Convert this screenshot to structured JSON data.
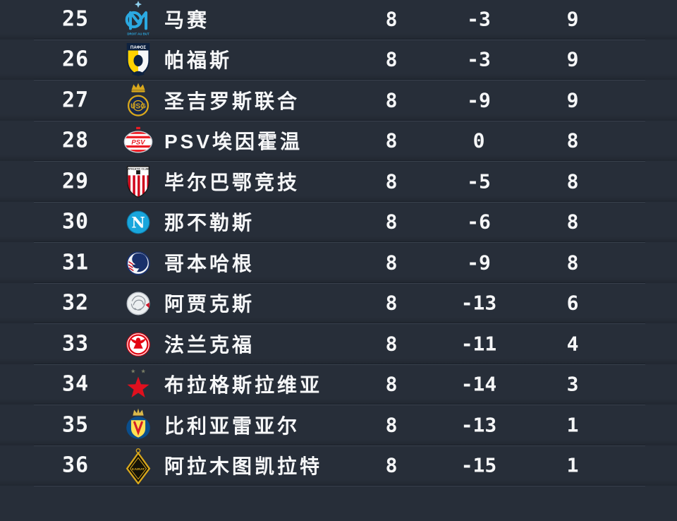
{
  "page": {
    "background_color": "#272e39",
    "text_color": "#f6f7f8",
    "separator_dark": "#1a202a",
    "separator_light": "#39414d"
  },
  "standings_table": {
    "visible_columns": [
      "rank",
      "badge",
      "team",
      "played",
      "goal_difference",
      "points"
    ],
    "rows": [
      {
        "rank": "25",
        "team": "马赛",
        "badge_icon": "marseille-badge",
        "played": "8",
        "goal_difference": "-3",
        "points": "9"
      },
      {
        "rank": "26",
        "team": "帕福斯",
        "badge_icon": "pafos-badge",
        "played": "8",
        "goal_difference": "-3",
        "points": "9"
      },
      {
        "rank": "27",
        "team": "圣吉罗斯联合",
        "badge_icon": "union-sg-badge",
        "played": "8",
        "goal_difference": "-9",
        "points": "9"
      },
      {
        "rank": "28",
        "team": "PSV埃因霍温",
        "badge_icon": "psv-badge",
        "played": "8",
        "goal_difference": "0",
        "points": "8"
      },
      {
        "rank": "29",
        "team": "毕尔巴鄂竞技",
        "badge_icon": "athletic-bilbao-badge",
        "played": "8",
        "goal_difference": "-5",
        "points": "8"
      },
      {
        "rank": "30",
        "team": "那不勒斯",
        "badge_icon": "napoli-badge",
        "played": "8",
        "goal_difference": "-6",
        "points": "8"
      },
      {
        "rank": "31",
        "team": "哥本哈根",
        "badge_icon": "copenhagen-badge",
        "played": "8",
        "goal_difference": "-9",
        "points": "8"
      },
      {
        "rank": "32",
        "team": "阿贾克斯",
        "badge_icon": "ajax-badge",
        "played": "8",
        "goal_difference": "-13",
        "points": "6"
      },
      {
        "rank": "33",
        "team": "法兰克福",
        "badge_icon": "frankfurt-badge",
        "played": "8",
        "goal_difference": "-11",
        "points": "4"
      },
      {
        "rank": "34",
        "team": "布拉格斯拉维亚",
        "badge_icon": "slavia-prague-badge",
        "played": "8",
        "goal_difference": "-14",
        "points": "3"
      },
      {
        "rank": "35",
        "team": "比利亚雷亚尔",
        "badge_icon": "villarreal-badge",
        "played": "8",
        "goal_difference": "-13",
        "points": "1"
      },
      {
        "rank": "36",
        "team": "阿拉木图凯拉特",
        "badge_icon": "kairat-badge",
        "played": "8",
        "goal_difference": "-15",
        "points": "1"
      }
    ]
  }
}
